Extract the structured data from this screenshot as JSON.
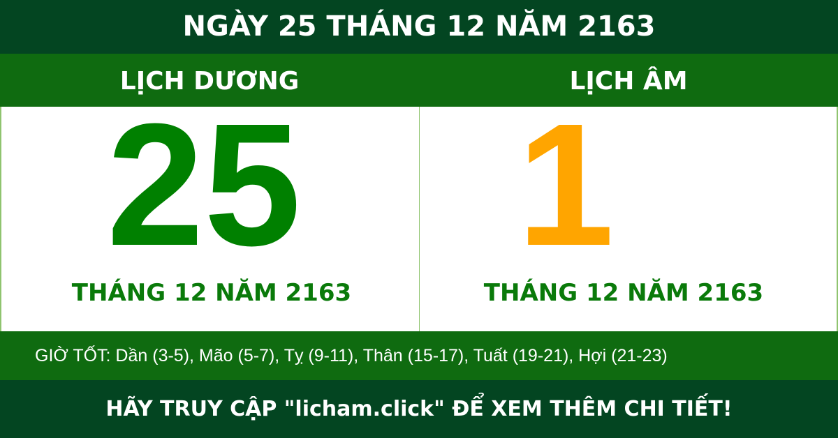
{
  "title": "NGÀY 25 THÁNG 12 NĂM 2163",
  "solar": {
    "heading": "LỊCH DƯƠNG",
    "day": "25",
    "month_year": "THÁNG 12 NĂM 2163",
    "color": "#008000"
  },
  "lunar": {
    "heading": "LỊCH ÂM",
    "day": "1",
    "month_year": "THÁNG 12 NĂM 2163",
    "color": "#ffa500"
  },
  "good_hours": "GIỜ TỐT: Dần (3-5), Mão (5-7), Tỵ (9-11), Thân (15-17), Tuất (19-21), Hợi (21-23)",
  "footer": "HÃY TRUY CẬP \"licham.click\" ĐỂ XEM THÊM CHI TIẾT!"
}
